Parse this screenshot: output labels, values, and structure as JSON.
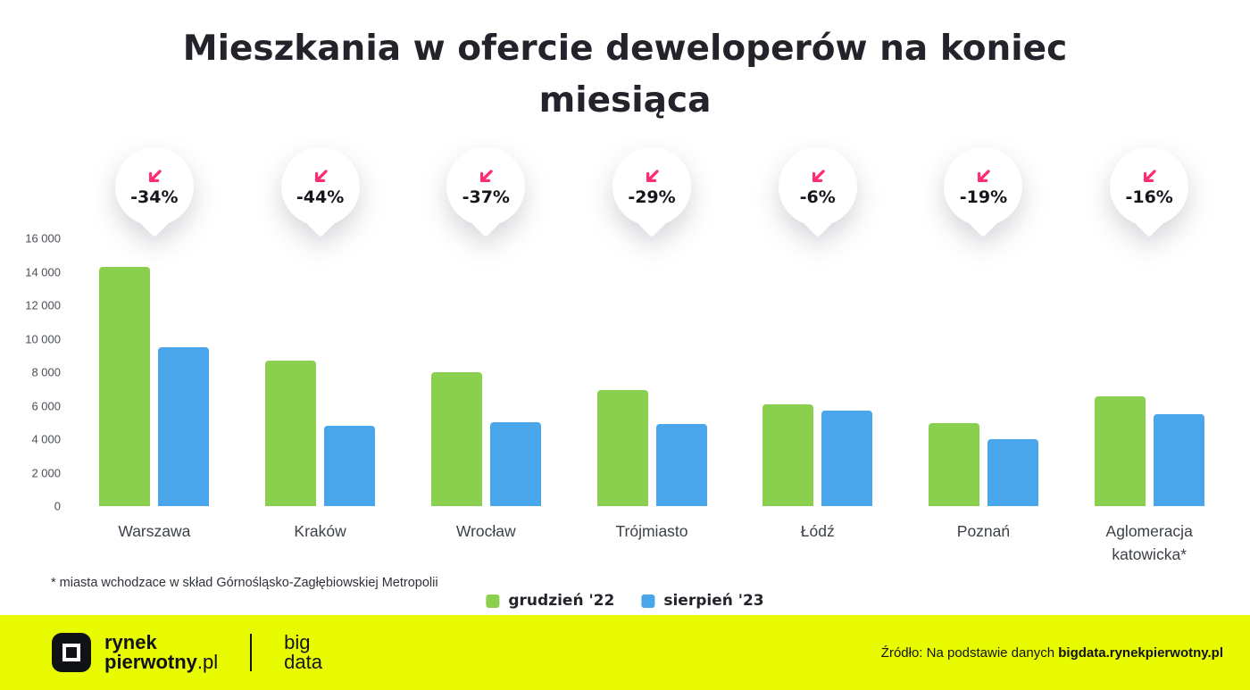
{
  "title": "Mieszkania w ofercie deweloperów na koniec miesiąca",
  "chart_data": {
    "type": "bar",
    "title": "Mieszkania w ofercie deweloperów na koniec miesiąca",
    "categories": [
      "Warszawa",
      "Kraków",
      "Wrocław",
      "Trójmiasto",
      "Łódź",
      "Poznań",
      "Aglomeracja katowicka*"
    ],
    "series": [
      {
        "name": "grudzień '22",
        "color": "#8ad04e",
        "values": [
          14300,
          8700,
          8050,
          6950,
          6100,
          5000,
          6600
        ]
      },
      {
        "name": "sierpień '23",
        "color": "#4aa6eb",
        "values": [
          9500,
          4850,
          5050,
          4950,
          5750,
          4050,
          5500
        ]
      }
    ],
    "change_badges": [
      "-34%",
      "-44%",
      "-37%",
      "-29%",
      "-6%",
      "-19%",
      "-16%"
    ],
    "ylim": [
      0,
      16000
    ],
    "yticks": [
      0,
      2000,
      4000,
      6000,
      8000,
      10000,
      12000,
      14000,
      16000
    ],
    "ytick_labels": [
      "0",
      "2 000",
      "4 000",
      "6 000",
      "8 000",
      "10 000",
      "12 000",
      "14 000",
      "16 000"
    ],
    "grid": false,
    "legend_position": "bottom-center"
  },
  "footnote": "* miasta wchodzace w skład Górnośląsko-Zagłębiowskiej Metropolii",
  "footer": {
    "brand_line1": "rynek",
    "brand_line2_bold": "pierwotny",
    "brand_line2_light": ".pl",
    "bigdata_line1": "big",
    "bigdata_line2": "data",
    "source_prefix": "Źródło: Na podstawie danych ",
    "source_bold": "bigdata.rynekpierwotny.pl"
  },
  "colors": {
    "bar_green": "#8ad04e",
    "bar_blue": "#4aa6eb",
    "badge_pink": "#fc2e71",
    "title_text": "#23242b",
    "footer_background": "#e9fb00"
  }
}
